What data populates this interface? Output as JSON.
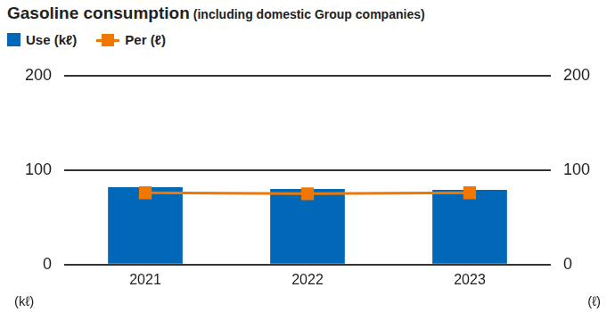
{
  "chart_data": {
    "type": "bar",
    "title": "Gasoline consumption",
    "subtitle": "(including domestic Group companies)",
    "categories": [
      "2021",
      "2022",
      "2023"
    ],
    "series": [
      {
        "name": "Use (kℓ)",
        "type": "bar",
        "color": "#0068b7",
        "values": [
          82,
          80,
          79
        ]
      },
      {
        "name": "Per (ℓ)",
        "type": "line",
        "color": "#f07800",
        "marker": "square",
        "axis": "y2",
        "values": [
          76,
          75,
          76
        ]
      }
    ],
    "y_label": "(kℓ)",
    "y2_label": "(ℓ)",
    "ylim": [
      0,
      200
    ],
    "yticks": [
      0,
      100,
      200
    ],
    "y2lim": [
      0,
      200
    ],
    "y2ticks": [
      0,
      100,
      200
    ],
    "grid": true,
    "legend": "top-left"
  }
}
